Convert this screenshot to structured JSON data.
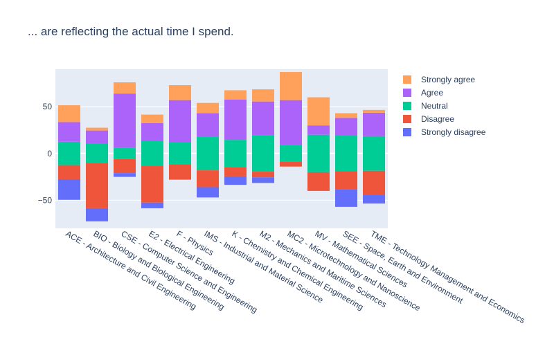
{
  "chart_data": {
    "type": "bar",
    "stacked": "relative",
    "title": "... are reflecting the actual time I spend.",
    "xlabel": "",
    "ylabel": "",
    "ylim": [
      -80,
      90
    ],
    "yticks": [
      -50,
      0,
      50
    ],
    "grid": true,
    "legend_position": "right",
    "categories": [
      "ACE - Architecture and Civil Engineering",
      "BIO - Biology and Biological Engineering",
      "CSE - Computer Science and Engineering",
      "E2 - Electrical Engineering",
      "F - Physics",
      "IMS - Industrial and Material Science",
      "K - Chemistry and Chemical Engineering",
      "M2 - Mechanics and Maritime Sciences",
      "MC2 - Microtechnology and Nanoscience",
      "MV - Mathematical Sciences",
      "SEE - Space, Earth and Environment",
      "TME - Technology Management and Economics"
    ],
    "series": [
      {
        "name": "Strongly disagree",
        "color": "#636efa",
        "values": [
          -22,
          -14,
          -4,
          -6,
          0,
          -11,
          -9,
          -6,
          0,
          0,
          -19,
          -9
        ]
      },
      {
        "name": "Disagree",
        "color": "#ef553b",
        "values": [
          -15,
          -48,
          -15,
          -39,
          -16,
          -18,
          -10,
          -6,
          -5,
          -20,
          -19,
          -26
        ]
      },
      {
        "name": "Neutral",
        "color": "#00cc96",
        "values": [
          25,
          21,
          12,
          27,
          24,
          36,
          29,
          39,
          18,
          40,
          38,
          37
        ]
      },
      {
        "name": "Agree",
        "color": "#ab63fa",
        "values": [
          21,
          14,
          58,
          19,
          45,
          25,
          43,
          36,
          48,
          10,
          19,
          25
        ]
      },
      {
        "name": "Strongly agree",
        "color": "#ffa15a",
        "values": [
          18,
          3,
          12,
          9,
          16,
          11,
          10,
          13,
          30,
          30,
          5,
          3
        ]
      }
    ],
    "neutral_midpoints": [
      0,
      0,
      0,
      0,
      0,
      0,
      0,
      0,
      0,
      0,
      0,
      0
    ]
  }
}
